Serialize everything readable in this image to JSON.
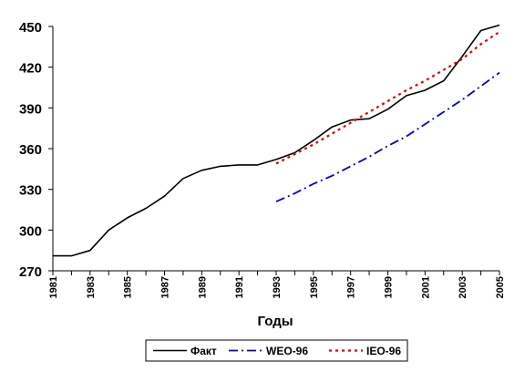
{
  "chart_data": {
    "type": "line",
    "title": "",
    "xlabel": "Годы",
    "ylabel": "",
    "xlim": [
      1981,
      2005
    ],
    "ylim": [
      270,
      450
    ],
    "yticks": [
      270,
      300,
      330,
      360,
      390,
      420,
      450
    ],
    "xtick_labels": [
      "1981",
      "1983",
      "1985",
      "1987",
      "1989",
      "1991",
      "1993",
      "1995",
      "1997",
      "1999",
      "2001",
      "2003",
      "2005"
    ],
    "grid": false,
    "legend_position": "bottom",
    "series": [
      {
        "name": "Факт",
        "color": "#000000",
        "style": "solid",
        "x": [
          1981,
          1982,
          1983,
          1984,
          1985,
          1986,
          1987,
          1988,
          1989,
          1990,
          1991,
          1992,
          1993,
          1994,
          1995,
          1996,
          1997,
          1998,
          1999,
          2000,
          2001,
          2002,
          2003,
          2004,
          2005
        ],
        "y": [
          281,
          281,
          285,
          300,
          309,
          316,
          325,
          338,
          344,
          347,
          348,
          348,
          352,
          357,
          366,
          376,
          381,
          382,
          389,
          399,
          403,
          410,
          428,
          447,
          451
        ]
      },
      {
        "name": "WEO-96",
        "color": "#0000cc",
        "style": "dashdot",
        "x": [
          1993,
          1994,
          1995,
          1996,
          1997,
          1998,
          1999,
          2000,
          2001,
          2002,
          2003,
          2004,
          2005
        ],
        "y": [
          321,
          327,
          334,
          340,
          347,
          354,
          362,
          369,
          378,
          387,
          396,
          406,
          416
        ]
      },
      {
        "name": "IEO-96",
        "color": "#dd0000",
        "style": "dotted",
        "x": [
          1993,
          1994,
          1995,
          1996,
          1997,
          1998,
          1999,
          2000,
          2001,
          2002,
          2003,
          2004,
          2005
        ],
        "y": [
          349,
          356,
          363,
          371,
          379,
          387,
          395,
          403,
          410,
          418,
          426,
          437,
          446
        ]
      }
    ]
  }
}
